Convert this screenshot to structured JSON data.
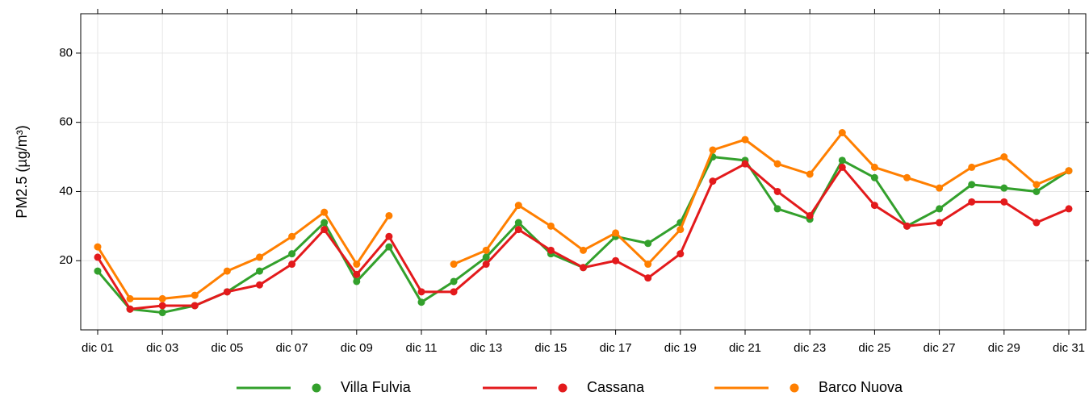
{
  "chart_data": {
    "type": "line",
    "y_label": "PM2.5 (µg/m³)",
    "categories": [
      "dic 01",
      null,
      "dic 03",
      null,
      "dic 05",
      null,
      "dic 07",
      null,
      "dic 09",
      null,
      "dic 11",
      null,
      "dic 13",
      null,
      "dic 15",
      null,
      "dic 17",
      null,
      "dic 19",
      null,
      "dic 21",
      null,
      "dic 23",
      null,
      "dic 25",
      null,
      "dic 27",
      null,
      "dic 29",
      null,
      "dic 31"
    ],
    "series": [
      {
        "name": "Villa Fulvia",
        "color": "#33a02c",
        "values": [
          17,
          6,
          5,
          7,
          11,
          17,
          22,
          31,
          14,
          24,
          8,
          14,
          21,
          31,
          22,
          18,
          27,
          25,
          31,
          50,
          49,
          35,
          32,
          49,
          44,
          30,
          35,
          42,
          41,
          40,
          46
        ]
      },
      {
        "name": "Cassana",
        "color": "#e31a1c",
        "values": [
          21,
          6,
          7,
          7,
          11,
          13,
          19,
          29,
          16,
          27,
          11,
          11,
          19,
          29,
          23,
          18,
          20,
          15,
          22,
          43,
          48,
          40,
          33,
          47,
          36,
          30,
          31,
          37,
          37,
          31,
          35
        ]
      },
      {
        "name": "Barco Nuova",
        "color": "#ff7f00",
        "values": [
          24,
          9,
          9,
          10,
          17,
          21,
          27,
          34,
          19,
          33,
          null,
          19,
          23,
          36,
          30,
          23,
          28,
          19,
          29,
          52,
          55,
          48,
          45,
          57,
          47,
          44,
          41,
          47,
          50,
          42,
          46
        ]
      }
    ],
    "ylim": [
      0,
      91.4
    ],
    "yticks": [
      20,
      40,
      60,
      80
    ],
    "grid": true,
    "legend": "bottom"
  }
}
